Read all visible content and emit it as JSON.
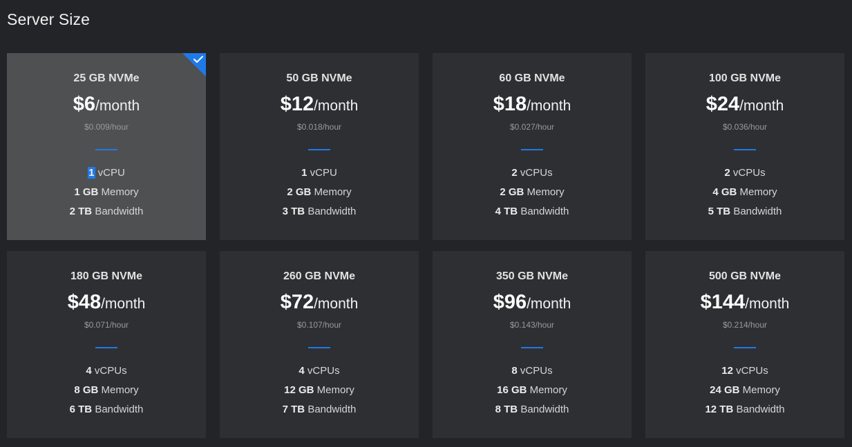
{
  "page": {
    "title": "Server Size"
  },
  "colors": {
    "background": "#232427",
    "card": "#2e2f33",
    "card_selected": "#4f5052",
    "accent": "#1f7ae8"
  },
  "icons": {
    "selected_marker": "checkmark-icon"
  },
  "plans": [
    {
      "disk": "25 GB NVMe",
      "price": "$6",
      "period": "/month",
      "hourly": "$0.009/hour",
      "cpu_count": "1",
      "cpu_label": "vCPU",
      "memory_amount": "1 GB",
      "memory_label": "Memory",
      "bandwidth_amount": "2 TB",
      "bandwidth_label": "Bandwidth",
      "selected": true
    },
    {
      "disk": "50 GB NVMe",
      "price": "$12",
      "period": "/month",
      "hourly": "$0.018/hour",
      "cpu_count": "1",
      "cpu_label": "vCPU",
      "memory_amount": "2 GB",
      "memory_label": "Memory",
      "bandwidth_amount": "3 TB",
      "bandwidth_label": "Bandwidth",
      "selected": false
    },
    {
      "disk": "60 GB NVMe",
      "price": "$18",
      "period": "/month",
      "hourly": "$0.027/hour",
      "cpu_count": "2",
      "cpu_label": "vCPUs",
      "memory_amount": "2 GB",
      "memory_label": "Memory",
      "bandwidth_amount": "4 TB",
      "bandwidth_label": "Bandwidth",
      "selected": false
    },
    {
      "disk": "100 GB NVMe",
      "price": "$24",
      "period": "/month",
      "hourly": "$0.036/hour",
      "cpu_count": "2",
      "cpu_label": "vCPUs",
      "memory_amount": "4 GB",
      "memory_label": "Memory",
      "bandwidth_amount": "5 TB",
      "bandwidth_label": "Bandwidth",
      "selected": false
    },
    {
      "disk": "180 GB NVMe",
      "price": "$48",
      "period": "/month",
      "hourly": "$0.071/hour",
      "cpu_count": "4",
      "cpu_label": "vCPUs",
      "memory_amount": "8 GB",
      "memory_label": "Memory",
      "bandwidth_amount": "6 TB",
      "bandwidth_label": "Bandwidth",
      "selected": false
    },
    {
      "disk": "260 GB NVMe",
      "price": "$72",
      "period": "/month",
      "hourly": "$0.107/hour",
      "cpu_count": "4",
      "cpu_label": "vCPUs",
      "memory_amount": "12 GB",
      "memory_label": "Memory",
      "bandwidth_amount": "7 TB",
      "bandwidth_label": "Bandwidth",
      "selected": false
    },
    {
      "disk": "350 GB NVMe",
      "price": "$96",
      "period": "/month",
      "hourly": "$0.143/hour",
      "cpu_count": "8",
      "cpu_label": "vCPUs",
      "memory_amount": "16 GB",
      "memory_label": "Memory",
      "bandwidth_amount": "8 TB",
      "bandwidth_label": "Bandwidth",
      "selected": false
    },
    {
      "disk": "500 GB NVMe",
      "price": "$144",
      "period": "/month",
      "hourly": "$0.214/hour",
      "cpu_count": "12",
      "cpu_label": "vCPUs",
      "memory_amount": "24 GB",
      "memory_label": "Memory",
      "bandwidth_amount": "12 TB",
      "bandwidth_label": "Bandwidth",
      "selected": false
    }
  ]
}
